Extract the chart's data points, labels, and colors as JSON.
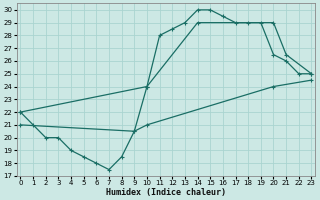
{
  "xlabel": "Humidex (Indice chaleur)",
  "bg_color": "#cce8e4",
  "grid_color": "#aad4d0",
  "line_color": "#1a6e65",
  "xlim": [
    -0.3,
    23.3
  ],
  "ylim": [
    17,
    30.5
  ],
  "yticks": [
    17,
    18,
    19,
    20,
    21,
    22,
    23,
    24,
    25,
    26,
    27,
    28,
    29,
    30
  ],
  "xticks": [
    0,
    1,
    2,
    3,
    4,
    5,
    6,
    7,
    8,
    9,
    10,
    11,
    12,
    13,
    14,
    15,
    16,
    17,
    18,
    19,
    20,
    21,
    22,
    23
  ],
  "main_x": [
    0,
    1,
    2,
    3,
    4,
    5,
    6,
    7,
    8,
    9,
    10,
    11,
    12,
    13,
    14,
    15,
    16,
    17,
    18,
    19,
    20,
    21,
    22,
    23
  ],
  "main_y": [
    22,
    21,
    20,
    20,
    19,
    18.5,
    18,
    17.5,
    18.5,
    20.5,
    24,
    28,
    28.5,
    29,
    30,
    30,
    29.5,
    29,
    29,
    29,
    26.5,
    26,
    25,
    25
  ],
  "upper_x": [
    0,
    10,
    14,
    20,
    21,
    23
  ],
  "upper_y": [
    22,
    24,
    29,
    29,
    26.5,
    25
  ],
  "lower_x": [
    0,
    9,
    10,
    20,
    23
  ],
  "lower_y": [
    21,
    20.5,
    21,
    24,
    24.5
  ],
  "marker_size": 3.0,
  "line_width": 0.9,
  "xlabel_size": 6.0,
  "tick_size": 5.0
}
